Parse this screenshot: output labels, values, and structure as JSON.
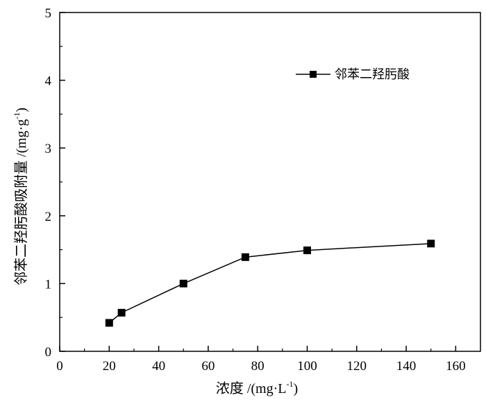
{
  "chart_data": {
    "type": "line",
    "title": "",
    "xlabel": "浓度 /(mg·L",
    "xlabel_sup": "-1",
    "xlabel_end": ")",
    "ylabel": "邻苯二羟肟酸吸附量 /(mg·g",
    "ylabel_sup": "-1",
    "ylabel_end": ")",
    "xlim": [
      0,
      170
    ],
    "ylim": [
      0,
      5
    ],
    "xticks": [
      0,
      20,
      40,
      60,
      80,
      100,
      120,
      140,
      160
    ],
    "yticks": [
      0,
      1,
      2,
      3,
      4,
      5
    ],
    "grid": false,
    "legend_position": "top-right",
    "series": [
      {
        "name": "邻苯二羟肟酸",
        "marker": "filled-square",
        "color": "#000000",
        "x": [
          20,
          25,
          50,
          75,
          100,
          150
        ],
        "y": [
          0.42,
          0.57,
          1.0,
          1.39,
          1.49,
          1.59
        ]
      }
    ]
  }
}
